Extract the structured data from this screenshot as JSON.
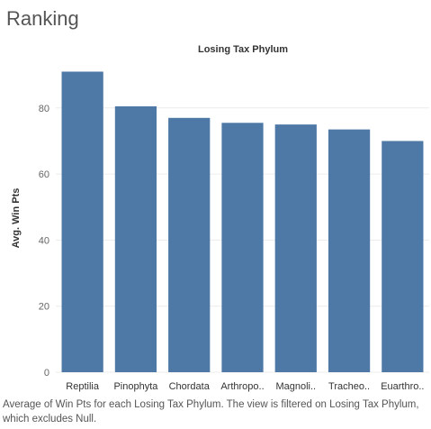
{
  "page": {
    "title": "Ranking",
    "caption": "Average of Win Pts for each Losing Tax Phylum. The view is filtered on Losing Tax Phylum, which excludes Null."
  },
  "chart_data": {
    "type": "bar",
    "title": "Losing Tax Phylum",
    "xlabel": "",
    "ylabel": "Avg. Win Pts",
    "categories": [
      "Reptilia",
      "Pinophyta",
      "Chordata",
      "Arthropo..",
      "Magnoli..",
      "Tracheo..",
      "Euarthro.."
    ],
    "values": [
      91,
      80.5,
      77,
      75.5,
      75,
      73.5,
      70
    ],
    "ylim": [
      0,
      100
    ],
    "yticks": [
      0,
      20,
      40,
      60,
      80
    ],
    "grid": true,
    "bar_color": "#4e79a7"
  }
}
